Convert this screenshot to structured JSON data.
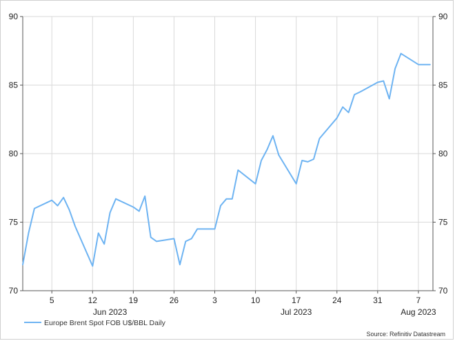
{
  "colors": {
    "line": "#6db3f2",
    "grid": "#d9d9d9",
    "axis": "#555555",
    "text": "#222222"
  },
  "legend": {
    "label": "Europe Brent Spot FOB U$/BBL Daily"
  },
  "source": {
    "text": "Source: Refinitiv Datastream"
  },
  "chart_data": {
    "type": "line",
    "title": "",
    "xlabel": "",
    "ylabel": "",
    "ylim": [
      70,
      90
    ],
    "y_ticks": [
      70,
      75,
      80,
      85,
      90
    ],
    "y_axis_sides": [
      "left",
      "right"
    ],
    "grid": true,
    "legend_position": "bottom-left",
    "x_day_ticks": [
      {
        "label": "5",
        "date": "2023-06-05"
      },
      {
        "label": "12",
        "date": "2023-06-12"
      },
      {
        "label": "19",
        "date": "2023-06-19"
      },
      {
        "label": "26",
        "date": "2023-06-26"
      },
      {
        "label": "3",
        "date": "2023-07-03"
      },
      {
        "label": "10",
        "date": "2023-07-10"
      },
      {
        "label": "17",
        "date": "2023-07-17"
      },
      {
        "label": "24",
        "date": "2023-07-24"
      },
      {
        "label": "31",
        "date": "2023-07-31"
      },
      {
        "label": "7",
        "date": "2023-08-07"
      }
    ],
    "x_month_labels": [
      {
        "label": "Jun 2023",
        "date": "2023-06-15"
      },
      {
        "label": "Jul 2023",
        "date": "2023-07-17"
      },
      {
        "label": "Aug 2023",
        "date": "2023-08-07"
      }
    ],
    "series": [
      {
        "name": "Europe Brent Spot FOB U$/BBL Daily",
        "x": [
          "2023-05-31",
          "2023-06-01",
          "2023-06-02",
          "2023-06-05",
          "2023-06-06",
          "2023-06-07",
          "2023-06-08",
          "2023-06-09",
          "2023-06-12",
          "2023-06-13",
          "2023-06-14",
          "2023-06-15",
          "2023-06-16",
          "2023-06-19",
          "2023-06-20",
          "2023-06-21",
          "2023-06-22",
          "2023-06-23",
          "2023-06-26",
          "2023-06-27",
          "2023-06-28",
          "2023-06-29",
          "2023-06-30",
          "2023-07-03",
          "2023-07-04",
          "2023-07-05",
          "2023-07-06",
          "2023-07-07",
          "2023-07-10",
          "2023-07-11",
          "2023-07-12",
          "2023-07-13",
          "2023-07-14",
          "2023-07-17",
          "2023-07-18",
          "2023-07-19",
          "2023-07-20",
          "2023-07-21",
          "2023-07-24",
          "2023-07-25",
          "2023-07-26",
          "2023-07-27",
          "2023-07-28",
          "2023-07-31",
          "2023-08-01",
          "2023-08-02",
          "2023-08-03",
          "2023-08-04",
          "2023-08-07",
          "2023-08-08",
          "2023-08-09"
        ],
        "y": [
          71.9,
          74.2,
          76.0,
          76.6,
          76.2,
          76.8,
          75.9,
          74.7,
          71.8,
          74.2,
          73.4,
          75.7,
          76.7,
          76.1,
          75.8,
          76.9,
          73.9,
          73.6,
          73.8,
          71.9,
          73.6,
          73.8,
          74.5,
          74.5,
          76.2,
          76.7,
          76.7,
          78.8,
          77.8,
          79.5,
          80.3,
          81.3,
          79.9,
          77.8,
          79.5,
          79.4,
          79.6,
          81.1,
          82.6,
          83.4,
          83.0,
          84.3,
          84.5,
          85.2,
          85.3,
          84.0,
          86.2,
          87.3,
          86.5,
          86.5,
          86.5
        ]
      }
    ]
  }
}
